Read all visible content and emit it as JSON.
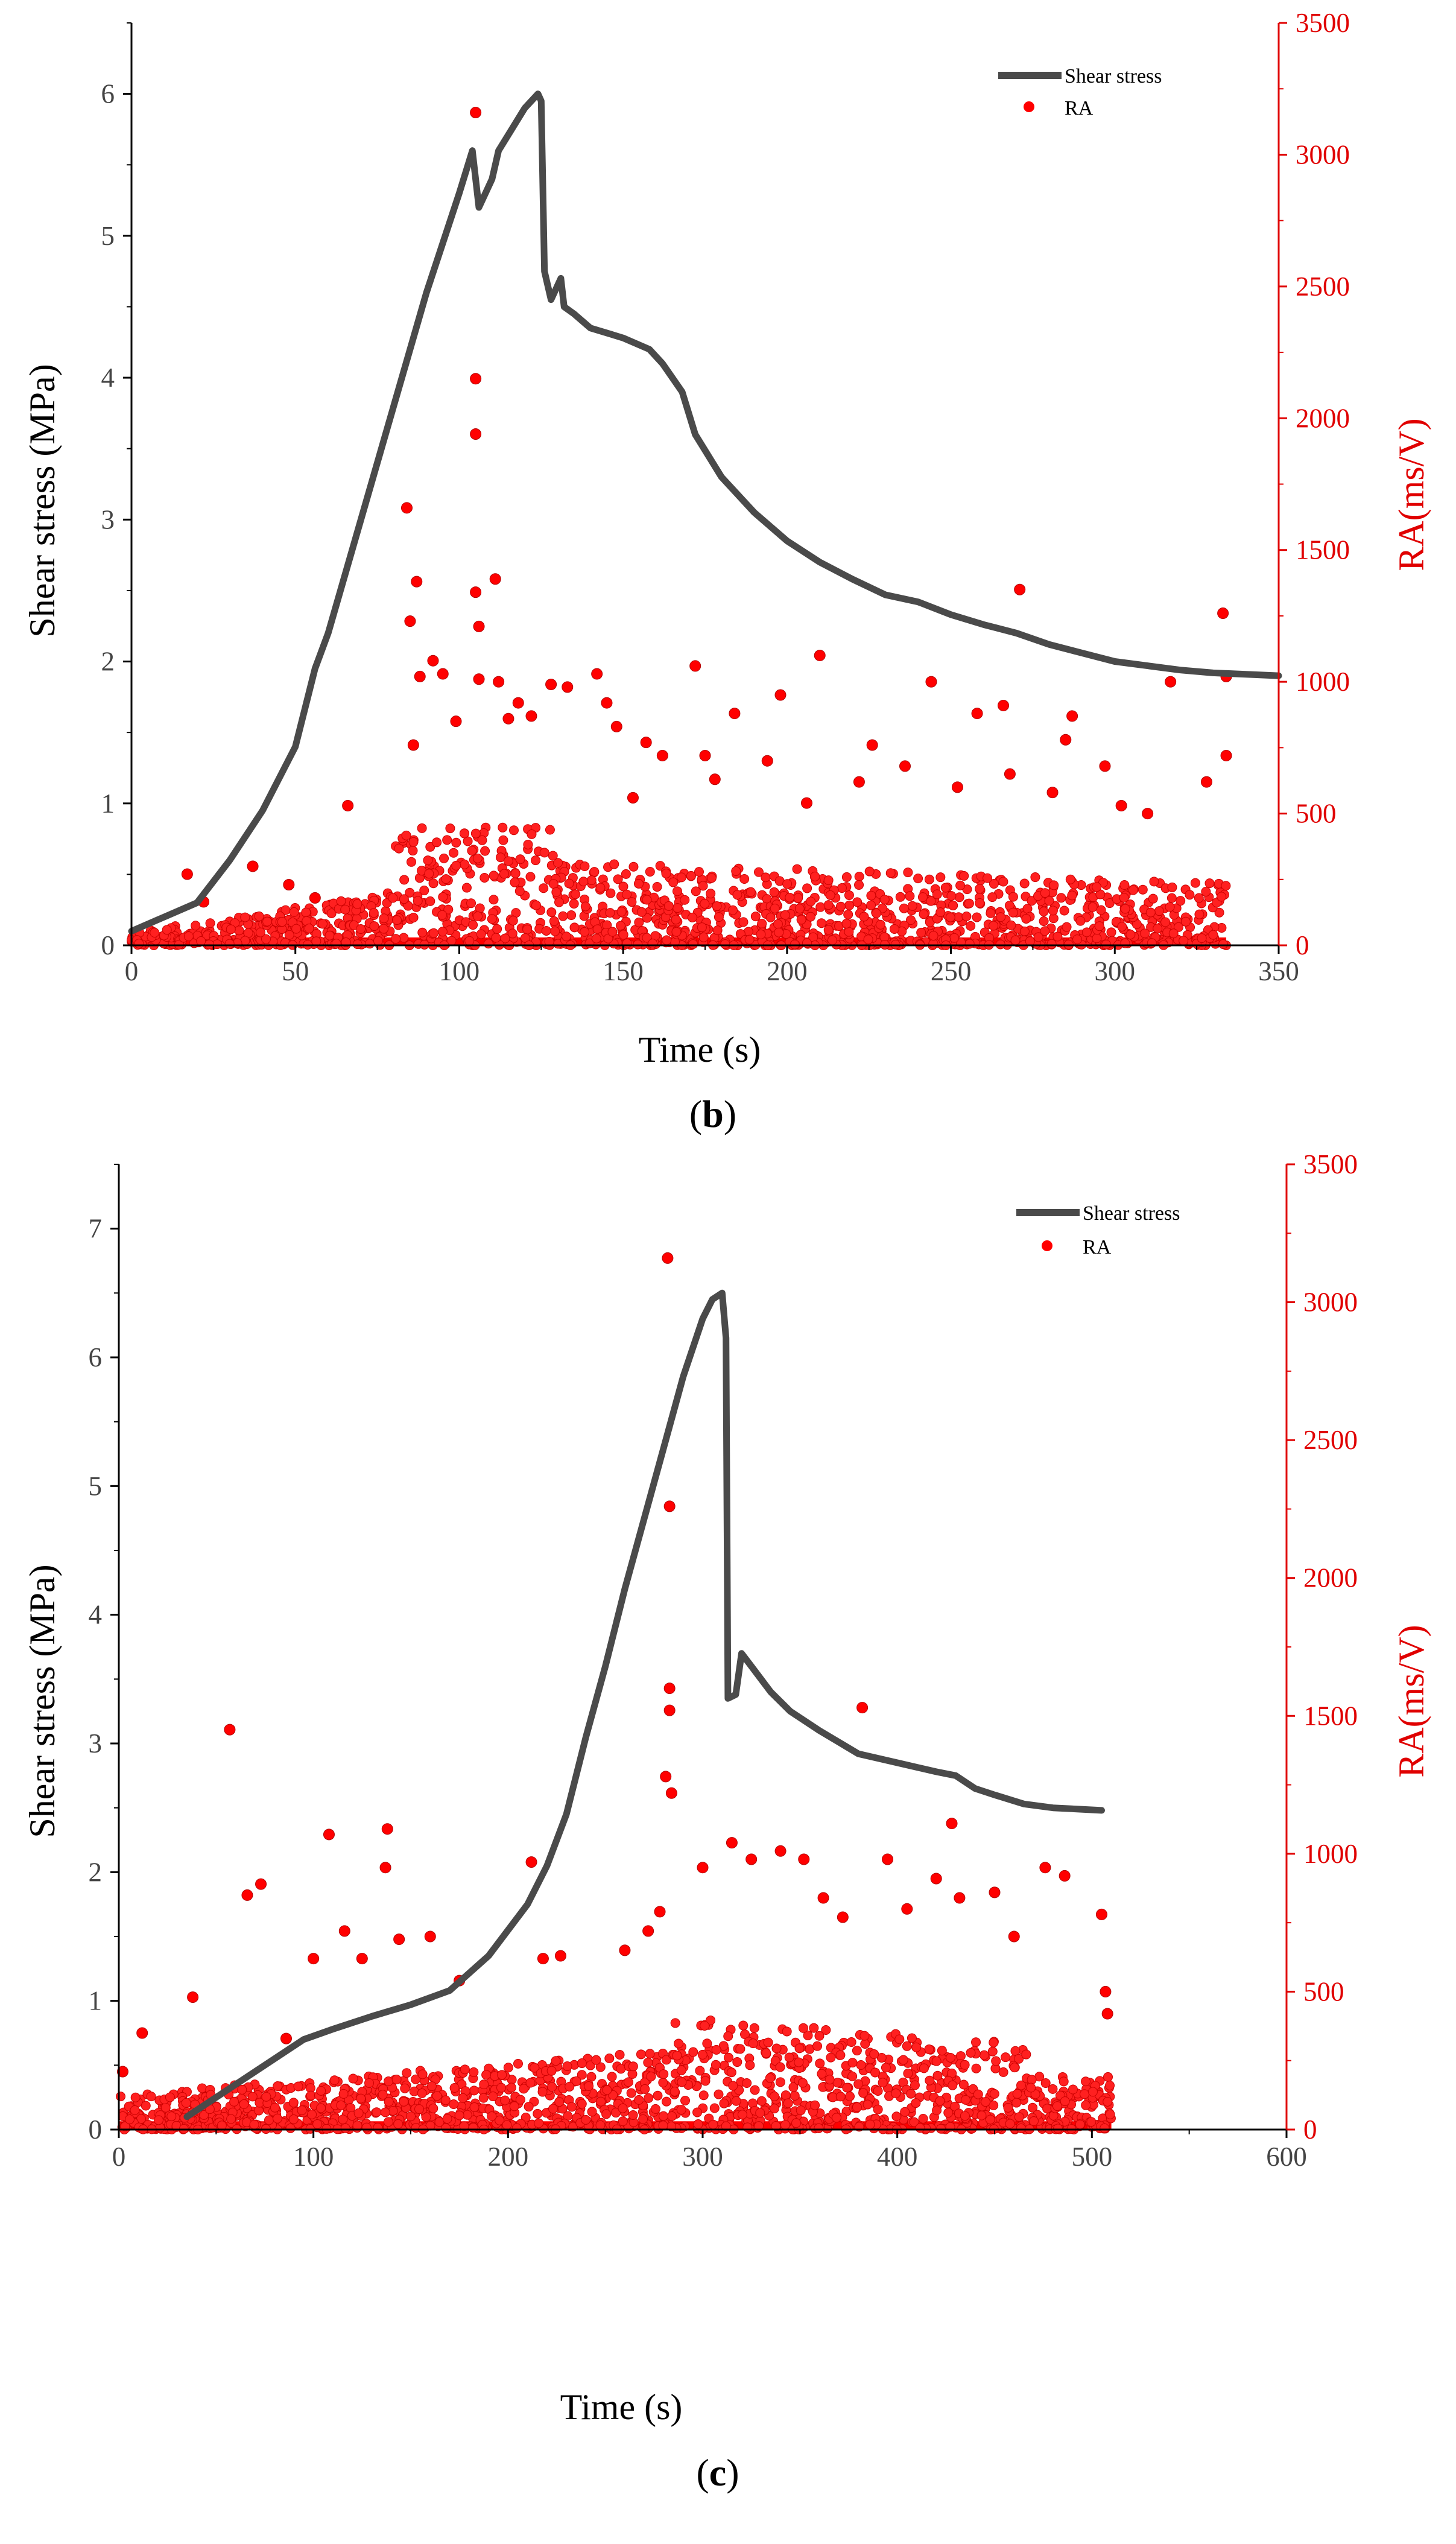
{
  "chart_data": [
    {
      "type": "line+scatter",
      "panel_label": "b",
      "xlabel": "Time (s)",
      "ylabel_left": "Shear stress (MPa)",
      "ylabel_right": "RA(ms/V)",
      "xlim": [
        0,
        350
      ],
      "ylim_left": [
        0,
        6.5
      ],
      "ylim_right": [
        0,
        3500
      ],
      "x_ticks": [
        0,
        50,
        100,
        150,
        200,
        250,
        300,
        350
      ],
      "y_left_ticks": [
        0,
        1,
        2,
        3,
        4,
        5,
        6
      ],
      "y_right_ticks": [
        0,
        500,
        1000,
        1500,
        2000,
        2500,
        3000,
        3500
      ],
      "legend": [
        "Shear stress",
        "RA"
      ],
      "legend_position": "top-right",
      "colors": {
        "line": "#4a4a4a",
        "scatter": "#ff0000",
        "right_axis": "#e00000"
      },
      "series": [
        {
          "name": "Shear stress",
          "kind": "line",
          "axis": "left",
          "points": [
            [
              0,
              0.1
            ],
            [
              10,
              0.2
            ],
            [
              20,
              0.3
            ],
            [
              30,
              0.6
            ],
            [
              40,
              0.95
            ],
            [
              50,
              1.4
            ],
            [
              56,
              1.95
            ],
            [
              60,
              2.2
            ],
            [
              70,
              3.0
            ],
            [
              80,
              3.8
            ],
            [
              90,
              4.6
            ],
            [
              100,
              5.3
            ],
            [
              104,
              5.6
            ],
            [
              106,
              5.2
            ],
            [
              110,
              5.4
            ],
            [
              112,
              5.6
            ],
            [
              120,
              5.9
            ],
            [
              124,
              6.0
            ],
            [
              125,
              5.95
            ],
            [
              126,
              4.75
            ],
            [
              128,
              4.55
            ],
            [
              131,
              4.7
            ],
            [
              132,
              4.5
            ],
            [
              135,
              4.45
            ],
            [
              140,
              4.35
            ],
            [
              150,
              4.28
            ],
            [
              158,
              4.2
            ],
            [
              162,
              4.1
            ],
            [
              168,
              3.9
            ],
            [
              172,
              3.6
            ],
            [
              180,
              3.3
            ],
            [
              190,
              3.05
            ],
            [
              200,
              2.85
            ],
            [
              210,
              2.7
            ],
            [
              220,
              2.58
            ],
            [
              230,
              2.47
            ],
            [
              240,
              2.42
            ],
            [
              250,
              2.33
            ],
            [
              260,
              2.26
            ],
            [
              270,
              2.2
            ],
            [
              280,
              2.12
            ],
            [
              290,
              2.06
            ],
            [
              300,
              2.0
            ],
            [
              310,
              1.97
            ],
            [
              320,
              1.94
            ],
            [
              330,
              1.92
            ],
            [
              350,
              1.9
            ]
          ]
        },
        {
          "name": "RA",
          "kind": "scatter",
          "axis": "right",
          "t_end": 334,
          "outliers": [
            [
              17,
              270
            ],
            [
              22,
              165
            ],
            [
              37,
              300
            ],
            [
              48,
              230
            ],
            [
              56,
              180
            ],
            [
              66,
              530
            ],
            [
              84,
              1660
            ],
            [
              85,
              1230
            ],
            [
              86,
              760
            ],
            [
              87,
              1380
            ],
            [
              88,
              1020
            ],
            [
              92,
              1080
            ],
            [
              95,
              1030
            ],
            [
              99,
              850
            ],
            [
              105,
              2150
            ],
            [
              105,
              1940
            ],
            [
              105,
              3160
            ],
            [
              105,
              1340
            ],
            [
              106,
              1010
            ],
            [
              106,
              1210
            ],
            [
              111,
              1390
            ],
            [
              112,
              1000
            ],
            [
              115,
              860
            ],
            [
              118,
              920
            ],
            [
              122,
              870
            ],
            [
              128,
              990
            ],
            [
              133,
              980
            ],
            [
              142,
              1030
            ],
            [
              145,
              920
            ],
            [
              148,
              830
            ],
            [
              153,
              560
            ],
            [
              157,
              770
            ],
            [
              162,
              720
            ],
            [
              172,
              1060
            ],
            [
              175,
              720
            ],
            [
              178,
              630
            ],
            [
              184,
              880
            ],
            [
              194,
              700
            ],
            [
              198,
              950
            ],
            [
              206,
              540
            ],
            [
              210,
              1100
            ],
            [
              222,
              620
            ],
            [
              226,
              760
            ],
            [
              236,
              680
            ],
            [
              244,
              1000
            ],
            [
              252,
              600
            ],
            [
              258,
              880
            ],
            [
              266,
              910
            ],
            [
              268,
              650
            ],
            [
              271,
              1350
            ],
            [
              281,
              580
            ],
            [
              285,
              780
            ],
            [
              287,
              870
            ],
            [
              297,
              680
            ],
            [
              302,
              530
            ],
            [
              310,
              500
            ],
            [
              317,
              1000
            ],
            [
              328,
              620
            ],
            [
              333,
              1260
            ],
            [
              334,
              1020
            ],
            [
              334,
              720
            ]
          ]
        }
      ]
    },
    {
      "type": "line+scatter",
      "panel_label": "c",
      "xlabel": "Time (s)",
      "ylabel_left": "Shear stress (MPa)",
      "ylabel_right": "RA(ms/V)",
      "xlim": [
        0,
        600
      ],
      "ylim_left": [
        0,
        7.5
      ],
      "ylim_right": [
        0,
        3500
      ],
      "x_ticks": [
        0,
        100,
        200,
        300,
        400,
        500,
        600
      ],
      "y_left_ticks": [
        0,
        1,
        2,
        3,
        4,
        5,
        6,
        7
      ],
      "y_right_ticks": [
        0,
        500,
        1000,
        1500,
        2000,
        2500,
        3000,
        3500
      ],
      "legend": [
        "Shear stress",
        "RA"
      ],
      "legend_position": "top-right",
      "colors": {
        "line": "#4a4a4a",
        "scatter": "#ff0000",
        "right_axis": "#e00000"
      },
      "series": [
        {
          "name": "Shear stress",
          "kind": "line",
          "axis": "left",
          "points": [
            [
              35,
              0.1
            ],
            [
              50,
              0.25
            ],
            [
              75,
              0.5
            ],
            [
              95,
              0.7
            ],
            [
              110,
              0.78
            ],
            [
              130,
              0.88
            ],
            [
              150,
              0.97
            ],
            [
              170,
              1.08
            ],
            [
              190,
              1.35
            ],
            [
              210,
              1.75
            ],
            [
              220,
              2.05
            ],
            [
              230,
              2.45
            ],
            [
              240,
              3.05
            ],
            [
              250,
              3.6
            ],
            [
              260,
              4.2
            ],
            [
              270,
              4.75
            ],
            [
              280,
              5.3
            ],
            [
              290,
              5.85
            ],
            [
              300,
              6.3
            ],
            [
              305,
              6.45
            ],
            [
              310,
              6.5
            ],
            [
              312,
              6.15
            ],
            [
              313,
              3.35
            ],
            [
              317,
              3.38
            ],
            [
              320,
              3.7
            ],
            [
              325,
              3.6
            ],
            [
              335,
              3.4
            ],
            [
              345,
              3.25
            ],
            [
              360,
              3.1
            ],
            [
              380,
              2.92
            ],
            [
              400,
              2.85
            ],
            [
              420,
              2.78
            ],
            [
              430,
              2.75
            ],
            [
              440,
              2.65
            ],
            [
              450,
              2.6
            ],
            [
              465,
              2.53
            ],
            [
              480,
              2.5
            ],
            [
              505,
              2.48
            ]
          ]
        },
        {
          "name": "RA",
          "kind": "scatter",
          "axis": "right",
          "t_end": 510,
          "outliers": [
            [
              2,
              210
            ],
            [
              12,
              350
            ],
            [
              38,
              480
            ],
            [
              57,
              1450
            ],
            [
              66,
              850
            ],
            [
              73,
              890
            ],
            [
              86,
              330
            ],
            [
              100,
              620
            ],
            [
              108,
              1070
            ],
            [
              116,
              720
            ],
            [
              125,
              620
            ],
            [
              137,
              950
            ],
            [
              138,
              1090
            ],
            [
              144,
              690
            ],
            [
              160,
              700
            ],
            [
              175,
              540
            ],
            [
              212,
              970
            ],
            [
              218,
              620
            ],
            [
              227,
              630
            ],
            [
              260,
              650
            ],
            [
              272,
              720
            ],
            [
              278,
              790
            ],
            [
              281,
              1280
            ],
            [
              282,
              3160
            ],
            [
              283,
              2260
            ],
            [
              283,
              1600
            ],
            [
              283,
              1520
            ],
            [
              284,
              1220
            ],
            [
              300,
              950
            ],
            [
              315,
              1040
            ],
            [
              325,
              980
            ],
            [
              340,
              1010
            ],
            [
              352,
              980
            ],
            [
              362,
              840
            ],
            [
              372,
              770
            ],
            [
              382,
              1530
            ],
            [
              395,
              980
            ],
            [
              405,
              800
            ],
            [
              420,
              910
            ],
            [
              428,
              1110
            ],
            [
              432,
              840
            ],
            [
              450,
              860
            ],
            [
              460,
              700
            ],
            [
              476,
              950
            ],
            [
              486,
              920
            ],
            [
              505,
              780
            ],
            [
              507,
              500
            ],
            [
              508,
              420
            ]
          ]
        }
      ]
    }
  ]
}
